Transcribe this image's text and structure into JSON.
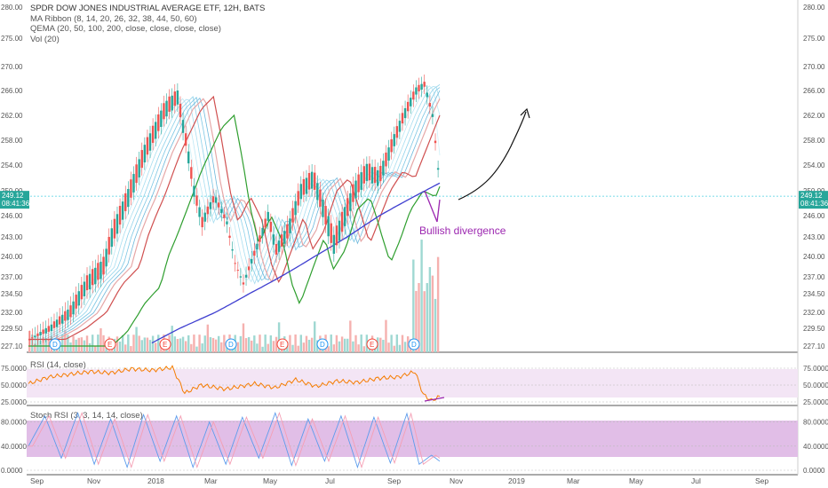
{
  "legend": {
    "title": "SPDR DOW JONES INDUSTRIAL AVERAGE ETF, 12H, BATS",
    "ma_ribbon": "MA Ribbon (8, 14, 20, 26, 32, 38, 44, 50, 60)",
    "qema": "QEMA (20, 50, 100, 200, close, close, close, close)",
    "vol": "Vol (20)"
  },
  "price_badges": {
    "last": "249.12",
    "countdown": "08:41:36"
  },
  "annotation": "Bullish divergence",
  "rsi_label": "RSI (14, close)",
  "stoch_label": "Stoch RSI (3, 3, 14, 14, close)",
  "chart_data": {
    "type": "candlestick",
    "price_axis": [
      "280.00",
      "275.00",
      "270.00",
      "266.00",
      "262.00",
      "258.00",
      "254.00",
      "250.00",
      "246.00",
      "243.00",
      "240.00",
      "237.00",
      "234.50",
      "232.00",
      "229.50",
      "227.10"
    ],
    "rsi_axis": [
      "75.0000",
      "50.0000",
      "25.0000"
    ],
    "stoch_axis": [
      "80.0000",
      "40.0000",
      "0.0000"
    ],
    "time_axis": [
      "Sep",
      "Nov",
      "2018",
      "Mar",
      "May",
      "Jul",
      "Sep",
      "Nov",
      "2019",
      "Mar",
      "May",
      "Jul",
      "Sep"
    ],
    "event_markers": [
      "D",
      "E",
      "E",
      "D",
      "E",
      "D",
      "E",
      "D"
    ],
    "price_path": [
      [
        0,
        228
      ],
      [
        0.05,
        229.5
      ],
      [
        0.1,
        232
      ],
      [
        0.14,
        236
      ],
      [
        0.18,
        238.5
      ],
      [
        0.2,
        243
      ],
      [
        0.24,
        249
      ],
      [
        0.28,
        256
      ],
      [
        0.33,
        263
      ],
      [
        0.36,
        265
      ],
      [
        0.38,
        258
      ],
      [
        0.4,
        250
      ],
      [
        0.42,
        245
      ],
      [
        0.45,
        249
      ],
      [
        0.48,
        245
      ],
      [
        0.5,
        239
      ],
      [
        0.52,
        236
      ],
      [
        0.55,
        241
      ],
      [
        0.58,
        246
      ],
      [
        0.6,
        241
      ],
      [
        0.63,
        244
      ],
      [
        0.66,
        250
      ],
      [
        0.69,
        252
      ],
      [
        0.72,
        246
      ],
      [
        0.74,
        242
      ],
      [
        0.76,
        245
      ],
      [
        0.79,
        250
      ],
      [
        0.82,
        253
      ],
      [
        0.85,
        252
      ],
      [
        0.88,
        257
      ],
      [
        0.91,
        262
      ],
      [
        0.94,
        266
      ],
      [
        0.96,
        267
      ],
      [
        0.98,
        262
      ],
      [
        1.0,
        249.12
      ]
    ],
    "rsi": [
      [
        0,
        52
      ],
      [
        0.05,
        62
      ],
      [
        0.1,
        66
      ],
      [
        0.15,
        70
      ],
      [
        0.2,
        68
      ],
      [
        0.25,
        74
      ],
      [
        0.3,
        72
      ],
      [
        0.35,
        76
      ],
      [
        0.38,
        38
      ],
      [
        0.42,
        50
      ],
      [
        0.48,
        44
      ],
      [
        0.55,
        52
      ],
      [
        0.6,
        46
      ],
      [
        0.65,
        58
      ],
      [
        0.7,
        48
      ],
      [
        0.75,
        56
      ],
      [
        0.8,
        54
      ],
      [
        0.85,
        60
      ],
      [
        0.9,
        62
      ],
      [
        0.94,
        70
      ],
      [
        0.96,
        36
      ],
      [
        0.98,
        27
      ],
      [
        1.0,
        33
      ]
    ],
    "stoch_rsi": [
      [
        0,
        40
      ],
      [
        0.04,
        90
      ],
      [
        0.08,
        20
      ],
      [
        0.12,
        95
      ],
      [
        0.16,
        10
      ],
      [
        0.2,
        85
      ],
      [
        0.24,
        5
      ],
      [
        0.28,
        92
      ],
      [
        0.32,
        15
      ],
      [
        0.36,
        90
      ],
      [
        0.4,
        5
      ],
      [
        0.44,
        80
      ],
      [
        0.48,
        10
      ],
      [
        0.52,
        88
      ],
      [
        0.56,
        20
      ],
      [
        0.6,
        95
      ],
      [
        0.64,
        8
      ],
      [
        0.68,
        85
      ],
      [
        0.72,
        15
      ],
      [
        0.76,
        90
      ],
      [
        0.8,
        5
      ],
      [
        0.84,
        88
      ],
      [
        0.88,
        12
      ],
      [
        0.92,
        94
      ],
      [
        0.95,
        10
      ],
      [
        0.98,
        25
      ],
      [
        1.0,
        15
      ]
    ],
    "colors": {
      "up": "#26a69a",
      "down": "#ef5350",
      "rsi": "#f57c00",
      "band": "#e1bee7",
      "qema200": "#3f3fd0"
    }
  }
}
